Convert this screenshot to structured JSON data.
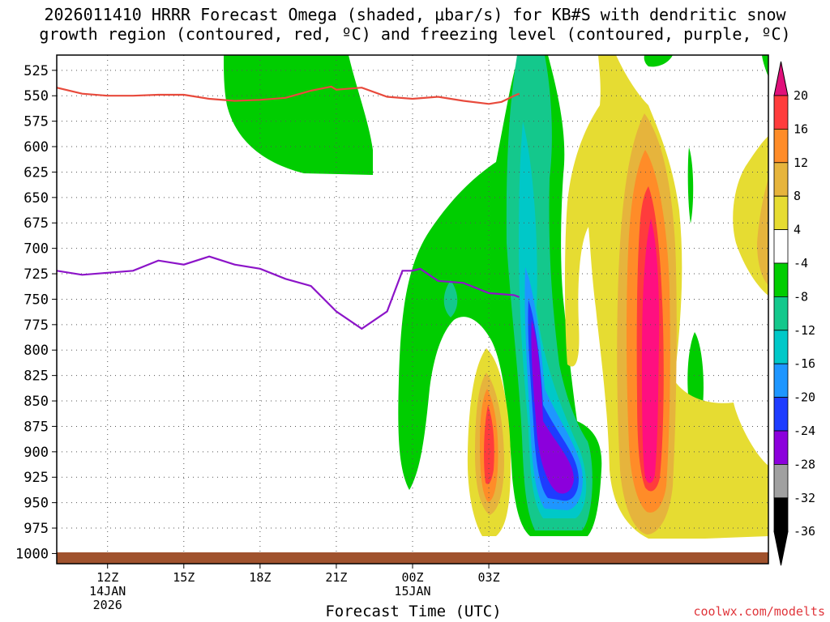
{
  "title_line1": "2026011410 HRRR Forecast Omega (shaded, μbar/s) for KB#S with dendritic snow",
  "title_line2": "growth region (contoured, red, ºC) and freezing level (contoured, purple, ºC)",
  "credit": "coolwx.com/modelts",
  "chart_data": {
    "type": "heatmap",
    "xlabel": "Forecast Time (UTC)",
    "ylabel": "",
    "x_hours": [
      0,
      28
    ],
    "ylim": [
      1010,
      510
    ],
    "y_scale": "linear-pressure-inverted",
    "y_ticks": [
      "525",
      "550",
      "575",
      "600",
      "625",
      "650",
      "675",
      "700",
      "725",
      "750",
      "775",
      "800",
      "825",
      "850",
      "875",
      "900",
      "925",
      "950",
      "975",
      "1000"
    ],
    "x_ticks": [
      {
        "h": 2,
        "label": "12Z",
        "sub1": "14JAN",
        "sub2": "2026"
      },
      {
        "h": 5,
        "label": "15Z",
        "sub1": "",
        "sub2": ""
      },
      {
        "h": 8,
        "label": "18Z",
        "sub1": "",
        "sub2": ""
      },
      {
        "h": 11,
        "label": "21Z",
        "sub1": "",
        "sub2": ""
      },
      {
        "h": 14,
        "label": "00Z",
        "sub1": "15JAN",
        "sub2": ""
      },
      {
        "h": 17,
        "label": "03Z",
        "sub1": "",
        "sub2": ""
      }
    ],
    "grid": true,
    "colorbar": {
      "labels": [
        "20",
        "16",
        "12",
        "8",
        "4",
        "-4",
        "-8",
        "-12",
        "-16",
        "-20",
        "-24",
        "-28",
        "-32",
        "-36"
      ],
      "colors": [
        "#ff0f80",
        "#ff3c3c",
        "#ff8c28",
        "#e6b43c",
        "#e6dc32",
        "#ffffff",
        "#00cd00",
        "#14c88c",
        "#00c8c8",
        "#1e96ff",
        "#1e3cff",
        "#8c00dc",
        "#a0a0a0",
        "#000000"
      ],
      "top_arrow": "#e0107a",
      "bottom_arrow": "#000000"
    },
    "series": [
      {
        "name": "",
        "color": "#e84a3c",
        "points": [
          [
            0,
            542
          ],
          [
            1,
            548
          ],
          [
            2,
            550
          ],
          [
            3,
            550
          ],
          [
            4,
            549
          ],
          [
            5,
            549
          ],
          [
            6,
            553
          ],
          [
            7,
            555
          ],
          [
            8,
            554
          ],
          [
            9,
            552
          ],
          [
            10,
            545
          ],
          [
            10.8,
            541
          ],
          [
            11,
            544
          ],
          [
            12,
            542
          ],
          [
            13,
            551
          ],
          [
            14,
            553
          ],
          [
            15,
            551
          ],
          [
            16,
            555
          ],
          [
            17,
            558
          ],
          [
            17.5,
            556
          ],
          [
            18,
            550
          ],
          [
            18.2,
            548
          ]
        ]
      },
      {
        "name": "",
        "color": "#8c14c8",
        "points": [
          [
            0,
            722
          ],
          [
            1,
            726
          ],
          [
            2,
            724
          ],
          [
            3,
            722
          ],
          [
            4,
            712
          ],
          [
            5,
            716
          ],
          [
            6,
            708
          ],
          [
            7,
            716
          ],
          [
            8,
            720
          ],
          [
            9,
            730
          ],
          [
            10,
            737
          ],
          [
            11,
            762
          ],
          [
            12,
            779
          ],
          [
            13,
            762
          ],
          [
            13.6,
            722
          ],
          [
            14,
            722
          ],
          [
            14.3,
            720
          ],
          [
            15,
            732
          ],
          [
            16,
            734
          ],
          [
            17,
            744
          ],
          [
            18,
            746
          ],
          [
            18.2,
            748
          ]
        ]
      }
    ],
    "ground_band": {
      "color": "#a0522d"
    }
  }
}
